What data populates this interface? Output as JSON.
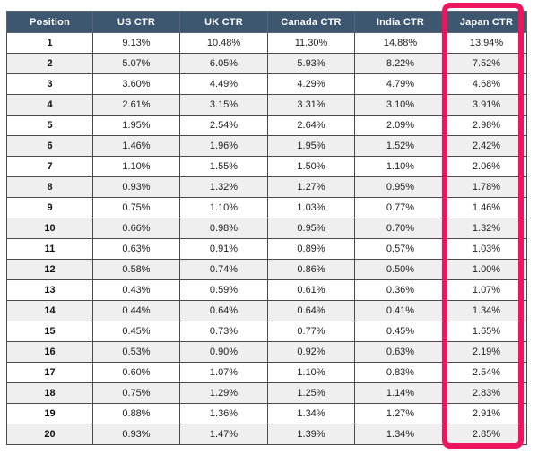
{
  "chart_data": {
    "type": "table",
    "columns": [
      "Position",
      "US CTR",
      "UK CTR",
      "Canada CTR",
      "India CTR",
      "Japan CTR"
    ],
    "rows": [
      [
        "1",
        "9.13%",
        "10.48%",
        "11.30%",
        "14.88%",
        "13.94%"
      ],
      [
        "2",
        "5.07%",
        "6.05%",
        "5.93%",
        "8.22%",
        "7.52%"
      ],
      [
        "3",
        "3.60%",
        "4.49%",
        "4.29%",
        "4.79%",
        "4.68%"
      ],
      [
        "4",
        "2.61%",
        "3.15%",
        "3.31%",
        "3.10%",
        "3.91%"
      ],
      [
        "5",
        "1.95%",
        "2.54%",
        "2.64%",
        "2.09%",
        "2.98%"
      ],
      [
        "6",
        "1.46%",
        "1.96%",
        "1.95%",
        "1.52%",
        "2.42%"
      ],
      [
        "7",
        "1.10%",
        "1.55%",
        "1.50%",
        "1.10%",
        "2.06%"
      ],
      [
        "8",
        "0.93%",
        "1.32%",
        "1.27%",
        "0.95%",
        "1.78%"
      ],
      [
        "9",
        "0.75%",
        "1.10%",
        "1.03%",
        "0.77%",
        "1.46%"
      ],
      [
        "10",
        "0.66%",
        "0.98%",
        "0.95%",
        "0.70%",
        "1.32%"
      ],
      [
        "11",
        "0.63%",
        "0.91%",
        "0.89%",
        "0.57%",
        "1.03%"
      ],
      [
        "12",
        "0.58%",
        "0.74%",
        "0.86%",
        "0.50%",
        "1.00%"
      ],
      [
        "13",
        "0.43%",
        "0.59%",
        "0.61%",
        "0.36%",
        "1.07%"
      ],
      [
        "14",
        "0.44%",
        "0.64%",
        "0.64%",
        "0.41%",
        "1.34%"
      ],
      [
        "15",
        "0.45%",
        "0.73%",
        "0.77%",
        "0.45%",
        "1.65%"
      ],
      [
        "16",
        "0.53%",
        "0.90%",
        "0.92%",
        "0.63%",
        "2.19%"
      ],
      [
        "17",
        "0.60%",
        "1.07%",
        "1.10%",
        "0.83%",
        "2.54%"
      ],
      [
        "18",
        "0.75%",
        "1.29%",
        "1.25%",
        "1.14%",
        "2.83%"
      ],
      [
        "19",
        "0.88%",
        "1.36%",
        "1.34%",
        "1.27%",
        "2.91%"
      ],
      [
        "20",
        "0.93%",
        "1.47%",
        "1.39%",
        "1.34%",
        "2.85%"
      ]
    ],
    "highlight": {
      "column": "Japan CTR",
      "color": "#ee155f"
    },
    "layout": {
      "grid": "on",
      "legend": "none"
    }
  },
  "colors": {
    "header_bg": "#3e5771",
    "header_text": "#ffffff",
    "row_alt_bg": "#efefef",
    "cell_border": "#4a4a4a",
    "highlight": "#ee155f"
  }
}
